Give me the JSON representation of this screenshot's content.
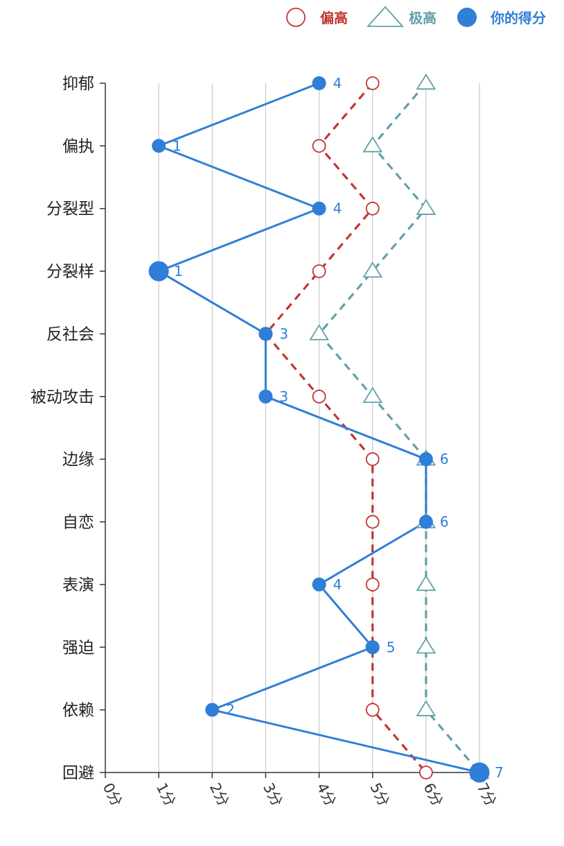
{
  "chart_data": {
    "type": "line",
    "orientation": "horizontal",
    "categories": [
      "抑郁",
      "偏执",
      "分裂型",
      "分裂样",
      "反社会",
      "被动攻击",
      "边缘",
      "自恋",
      "表演",
      "强迫",
      "依赖",
      "回避"
    ],
    "x_ticks": [
      "0分",
      "1分",
      "2分",
      "3分",
      "4分",
      "5分",
      "6分",
      "7分"
    ],
    "xlim": [
      0,
      7
    ],
    "grid": "vertical",
    "legend_position": "top-right",
    "series": [
      {
        "name": "偏高",
        "marker": "hollow-circle",
        "line": "dashed",
        "color": "#c23531",
        "values": [
          5,
          4,
          5,
          4,
          3,
          4,
          5,
          5,
          5,
          5,
          5,
          6
        ]
      },
      {
        "name": "极高",
        "marker": "hollow-triangle",
        "line": "dashed",
        "color": "#61a0a8",
        "values": [
          6,
          5,
          6,
          5,
          4,
          5,
          6,
          6,
          6,
          6,
          6,
          7
        ]
      },
      {
        "name": "你的得分",
        "marker": "filled-circle",
        "line": "solid",
        "color": "#2f7ed8",
        "values": [
          4,
          1,
          4,
          1,
          3,
          3,
          6,
          6,
          4,
          5,
          2,
          7
        ],
        "data_labels": [
          "4",
          "1",
          "4",
          "1",
          "3",
          "3",
          "6",
          "6",
          "4",
          "5",
          "2",
          "7"
        ],
        "emphasized_categories": [
          "分裂样",
          "回避"
        ]
      }
    ]
  }
}
